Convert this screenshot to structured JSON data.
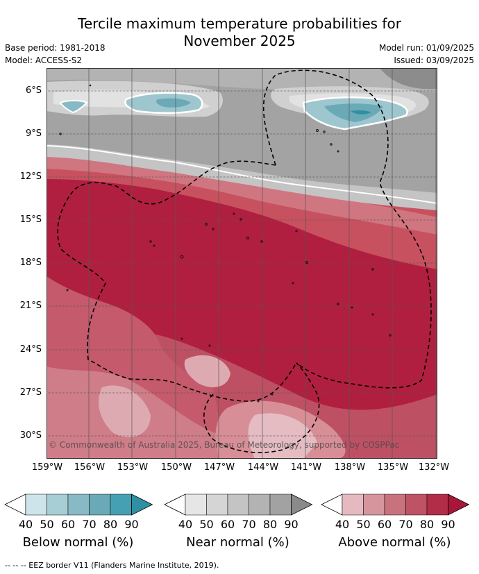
{
  "title_line1": "Tercile maximum temperature probabilities for",
  "title_line2": "November 2025",
  "base_period": "Base period: 1981-2018",
  "model": "Model: ACCESS-S2",
  "model_run": "Model run: 01/09/2025",
  "issued": "Issued: 03/09/2025",
  "lat_labels": [
    "6°S",
    "9°S",
    "12°S",
    "15°S",
    "18°S",
    "21°S",
    "24°S",
    "27°S",
    "30°S"
  ],
  "lon_labels": [
    "159°W",
    "156°W",
    "153°W",
    "150°W",
    "147°W",
    "144°W",
    "141°W",
    "138°W",
    "135°W",
    "132°W"
  ],
  "copyright": "© Commonwealth of Australia 2025, Bureau of Meteorology, supported by COSPPac",
  "colorbars": [
    {
      "title": "Below normal (%)",
      "ticks": [
        "40",
        "50",
        "60",
        "70",
        "80",
        "90"
      ],
      "colors": [
        "#ffffff",
        "#cde4ea",
        "#a7cdd5",
        "#88bac6",
        "#6aaab7",
        "#46a0b3",
        "#2f8fa3"
      ]
    },
    {
      "title": "Near normal (%)",
      "ticks": [
        "40",
        "50",
        "60",
        "70",
        "80",
        "90"
      ],
      "colors": [
        "#ffffff",
        "#e6e6e6",
        "#d5d5d5",
        "#c4c4c4",
        "#b3b3b3",
        "#a2a2a2",
        "#8a8a8a"
      ]
    },
    {
      "title": "Above normal (%)",
      "ticks": [
        "40",
        "50",
        "60",
        "70",
        "80",
        "90"
      ],
      "colors": [
        "#ffffff",
        "#e5b9bf",
        "#d6959d",
        "#c8727d",
        "#bd5365",
        "#b22d47",
        "#a8163a"
      ]
    }
  ],
  "footnote": "-- -- -- EEZ border V11 (Flanders Marine Institute, 2019)."
}
